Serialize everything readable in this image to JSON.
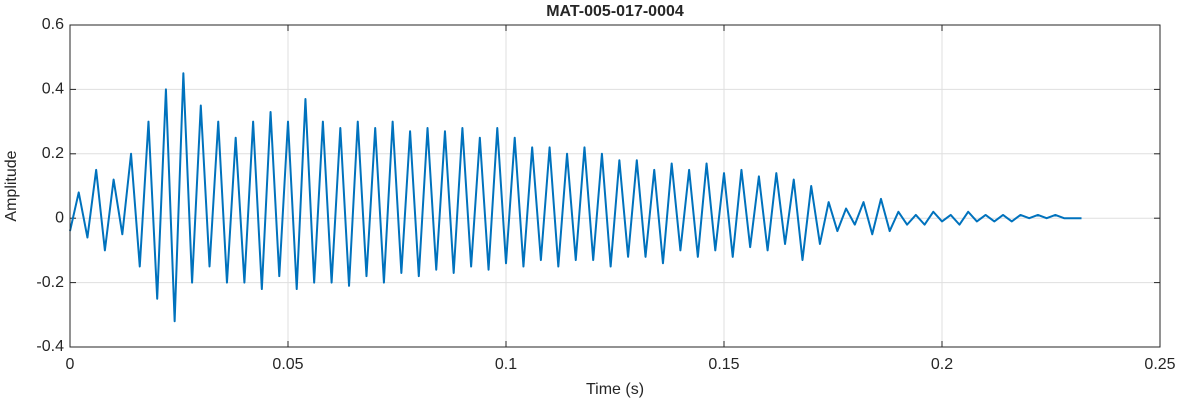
{
  "chart_data": {
    "type": "line",
    "title": "MAT-005-017-0004",
    "xlabel": "Time (s)",
    "ylabel": "Amplitude",
    "x": [
      0,
      0.002,
      0.004,
      0.006,
      0.008,
      0.01,
      0.012,
      0.014,
      0.016,
      0.018,
      0.02,
      0.022,
      0.024,
      0.026,
      0.028,
      0.03,
      0.032,
      0.034,
      0.036,
      0.038,
      0.04,
      0.042,
      0.044,
      0.046,
      0.048,
      0.05,
      0.052,
      0.054,
      0.056,
      0.058,
      0.06,
      0.062,
      0.064,
      0.066,
      0.068,
      0.07,
      0.072,
      0.074,
      0.076,
      0.078,
      0.08,
      0.082,
      0.084,
      0.086,
      0.088,
      0.09,
      0.092,
      0.094,
      0.096,
      0.098,
      0.1,
      0.102,
      0.104,
      0.106,
      0.108,
      0.11,
      0.112,
      0.114,
      0.116,
      0.118,
      0.12,
      0.122,
      0.124,
      0.126,
      0.128,
      0.13,
      0.132,
      0.134,
      0.136,
      0.138,
      0.14,
      0.142,
      0.144,
      0.146,
      0.148,
      0.15,
      0.152,
      0.154,
      0.156,
      0.158,
      0.16,
      0.162,
      0.164,
      0.166,
      0.168,
      0.17,
      0.172,
      0.174,
      0.176,
      0.178,
      0.18,
      0.182,
      0.184,
      0.186,
      0.188,
      0.19,
      0.192,
      0.194,
      0.196,
      0.198,
      0.2,
      0.202,
      0.204,
      0.206,
      0.208,
      0.21,
      0.212,
      0.214,
      0.216,
      0.218,
      0.22,
      0.222,
      0.224,
      0.226,
      0.228,
      0.23,
      0.232
    ],
    "series": [
      {
        "color": "#0072bd",
        "values": [
          -0.04,
          0.08,
          -0.06,
          0.15,
          -0.1,
          0.12,
          -0.05,
          0.2,
          -0.15,
          0.3,
          -0.25,
          0.4,
          -0.32,
          0.45,
          -0.2,
          0.35,
          -0.15,
          0.3,
          -0.2,
          0.25,
          -0.2,
          0.3,
          -0.22,
          0.33,
          -0.18,
          0.3,
          -0.22,
          0.37,
          -0.2,
          0.3,
          -0.2,
          0.28,
          -0.21,
          0.3,
          -0.18,
          0.28,
          -0.2,
          0.3,
          -0.17,
          0.27,
          -0.18,
          0.28,
          -0.16,
          0.27,
          -0.17,
          0.28,
          -0.15,
          0.25,
          -0.16,
          0.28,
          -0.14,
          0.25,
          -0.15,
          0.22,
          -0.13,
          0.22,
          -0.15,
          0.2,
          -0.13,
          0.22,
          -0.13,
          0.2,
          -0.15,
          0.18,
          -0.12,
          0.18,
          -0.12,
          0.15,
          -0.14,
          0.17,
          -0.1,
          0.15,
          -0.12,
          0.17,
          -0.1,
          0.14,
          -0.12,
          0.15,
          -0.09,
          0.13,
          -0.1,
          0.14,
          -0.08,
          0.12,
          -0.13,
          0.1,
          -0.08,
          0.05,
          -0.04,
          0.03,
          -0.02,
          0.05,
          -0.05,
          0.06,
          -0.04,
          0.02,
          -0.02,
          0.01,
          -0.02,
          0.02,
          -0.01,
          0.01,
          -0.02,
          0.02,
          -0.01,
          0.01,
          -0.01,
          0.01,
          -0.01,
          0.01,
          0,
          0.01,
          0,
          0.01,
          0,
          0,
          0
        ]
      }
    ],
    "xlim": [
      0,
      0.25
    ],
    "xticks": [
      0,
      0.05,
      0.1,
      0.15,
      0.2,
      0.25
    ],
    "ylim": [
      -0.4,
      0.6
    ],
    "yticks": [
      -0.4,
      -0.2,
      0,
      0.2,
      0.4,
      0.6
    ],
    "grid": true
  }
}
